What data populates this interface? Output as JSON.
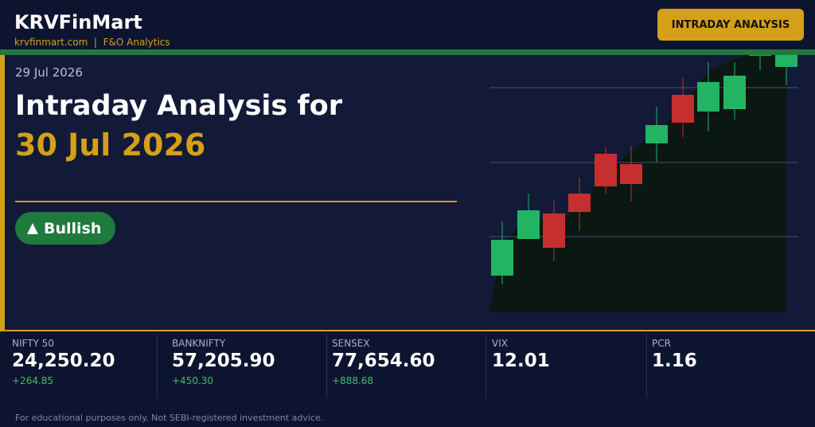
{
  "header": {
    "brand": "KRVFinMart",
    "site": "krvfinmart.com",
    "separator": "|",
    "tagline": "F&O Analytics",
    "badge": "INTRADAY ANALYSIS"
  },
  "hero": {
    "date": "29 Jul 2026",
    "headline": "Intraday Analysis for",
    "headline_date": "30 Jul 2026",
    "sentiment": "Bullish"
  },
  "stats": [
    {
      "label": "NIFTY 50",
      "value": "24,250.20",
      "change": "+264.85"
    },
    {
      "label": "BANKNIFTY",
      "value": "57,205.90",
      "change": "+450.30"
    },
    {
      "label": "SENSEX",
      "value": "77,654.60",
      "change": "+888.68"
    },
    {
      "label": "VIX",
      "value": "12.01"
    },
    {
      "label": "PCR",
      "value": "1.16"
    }
  ],
  "footer": {
    "disclaimer": "For educational purposes only. Not SEBI-registered investment advice."
  }
}
